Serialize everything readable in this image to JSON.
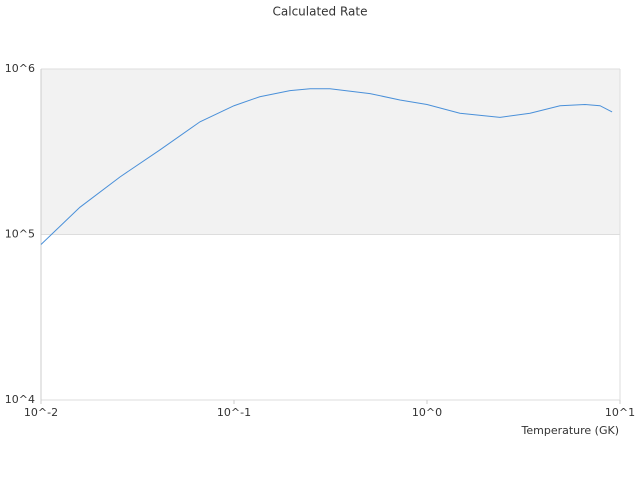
{
  "chart_data": {
    "type": "line",
    "title": "Calculated Rate",
    "x_label": "Temperature (GK)",
    "x": [
      0.01,
      0.0159,
      0.0257,
      0.0414,
      0.0667,
      0.1,
      0.136,
      0.195,
      0.248,
      0.314,
      0.507,
      0.724,
      1.0,
      1.48,
      2.39,
      3.42,
      4.89,
      6.59,
      7.88,
      9.1
    ],
    "series": [
      {
        "name": "Calculated Rate",
        "color": "#4a90d9",
        "values": [
          87000,
          146000,
          223000,
          325000,
          480000,
          600000,
          680000,
          740000,
          760000,
          760000,
          710000,
          650000,
          610000,
          540000,
          510000,
          540000,
          600000,
          610000,
          600000,
          550000
        ]
      }
    ],
    "log_x": true,
    "log_y": true,
    "xlim": [
      0.01,
      10
    ],
    "ylim": [
      10000,
      1000000
    ],
    "xticks": [
      {
        "value": 0.01,
        "label": "10^-2"
      },
      {
        "value": 0.1,
        "label": "10^-1"
      },
      {
        "value": 1,
        "label": "10^0"
      },
      {
        "value": 10,
        "label": "10^1"
      }
    ],
    "yticks": [
      {
        "value": 10000,
        "label": "10^4"
      },
      {
        "value": 100000,
        "label": "10^5"
      },
      {
        "value": 1000000,
        "label": "10^6"
      }
    ],
    "grid": true
  }
}
